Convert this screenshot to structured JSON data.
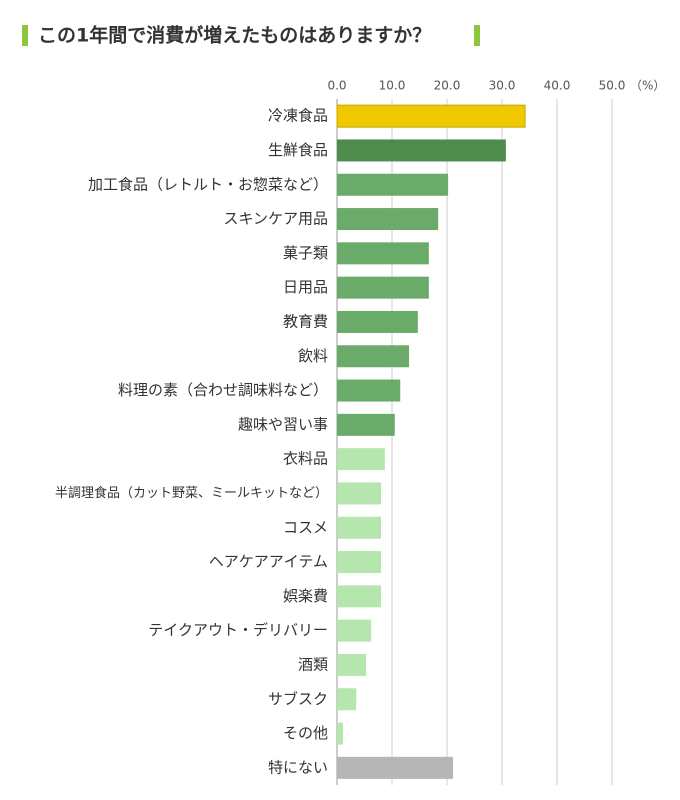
{
  "chart_data": {
    "type": "barh",
    "title": "この1年間で消費が増えたものはありますか？",
    "unit": "（%）",
    "categories": [
      "冷凍食品",
      "生鮮食品",
      "加工食品（レトルト・お惣菜など）",
      "スキンケア用品",
      "菓子類",
      "日用品",
      "教育費",
      "飲料",
      "料理の素（合わせ調味料など）",
      "趣味や習い事",
      "衣料品",
      "半調理食品（カット野菜、ミールキットなど）",
      "コスメ",
      "ヘアケアアイテム",
      "娯楽費",
      "テイクアウト・デリバリー",
      "酒類",
      "サブスク",
      "その他",
      "特にない"
    ],
    "values": [
      34.2,
      30.7,
      20.2,
      18.4,
      16.7,
      16.7,
      14.7,
      13.1,
      11.5,
      10.5,
      8.7,
      8.0,
      8.0,
      8.0,
      8.0,
      6.2,
      5.3,
      3.5,
      1.1,
      21.1
    ],
    "colors": [
      "#f0c800",
      "#4e8c4e",
      "#6aab6a",
      "#6aab6a",
      "#6aab6a",
      "#6aab6a",
      "#6aab6a",
      "#6aab6a",
      "#6aab6a",
      "#6aab6a",
      "#b4e6ae",
      "#b4e6ae",
      "#b4e6ae",
      "#b4e6ae",
      "#b4e6ae",
      "#b4e6ae",
      "#b4e6ae",
      "#b4e6ae",
      "#b4e6ae",
      "#b6b6b6"
    ],
    "xlim": [
      0,
      50
    ],
    "xticks": [
      {
        "value": 0,
        "label": "0.0"
      },
      {
        "value": 10,
        "label": "10.0"
      },
      {
        "value": 20,
        "label": "20.0"
      },
      {
        "value": 30,
        "label": "30.0"
      },
      {
        "value": 40,
        "label": "40.0"
      },
      {
        "value": 50,
        "label": "50.0"
      }
    ],
    "grid": true
  }
}
